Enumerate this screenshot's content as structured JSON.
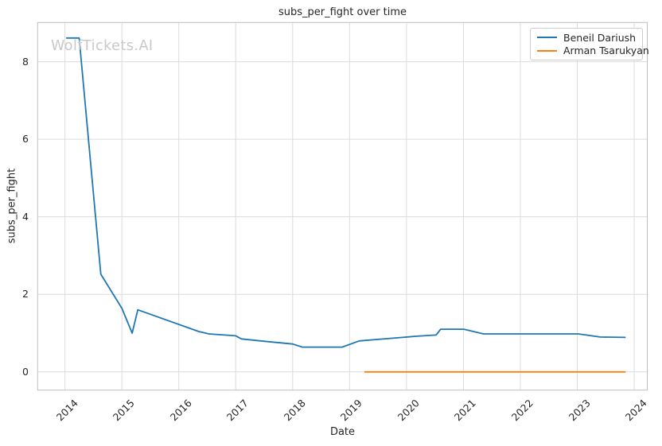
{
  "watermark": "WolfTickets.AI",
  "chart_data": {
    "type": "line",
    "title": "subs_per_fight over time",
    "xlabel": "Date",
    "ylabel": "subs_per_fight",
    "x_unit": "decimal_year",
    "x_ticks": [
      2014,
      2015,
      2016,
      2017,
      2018,
      2019,
      2020,
      2021,
      2022,
      2023,
      2024
    ],
    "y_ticks": [
      0,
      2,
      4,
      6,
      8
    ],
    "xlim": [
      2013.52,
      2024.23
    ],
    "ylim": [
      -0.47,
      9.01
    ],
    "grid": true,
    "grid_color": "#dcdcdc",
    "spine_color": "#c0c0c0",
    "legend_position": "upper right",
    "series": [
      {
        "name": "Beneil Dariush",
        "color": "#1f77b4",
        "points": [
          [
            2014.02,
            8.61
          ],
          [
            2014.25,
            8.61
          ],
          [
            2014.63,
            2.52
          ],
          [
            2015.0,
            1.64
          ],
          [
            2015.18,
            1.0
          ],
          [
            2015.28,
            1.6
          ],
          [
            2016.35,
            1.04
          ],
          [
            2016.53,
            0.98
          ],
          [
            2017.0,
            0.93
          ],
          [
            2017.1,
            0.85
          ],
          [
            2017.56,
            0.78
          ],
          [
            2018.0,
            0.72
          ],
          [
            2018.17,
            0.64
          ],
          [
            2018.87,
            0.64
          ],
          [
            2019.17,
            0.8
          ],
          [
            2020.18,
            0.92
          ],
          [
            2020.52,
            0.95
          ],
          [
            2020.6,
            1.1
          ],
          [
            2021.01,
            1.1
          ],
          [
            2021.35,
            0.98
          ],
          [
            2023.02,
            0.98
          ],
          [
            2023.4,
            0.9
          ],
          [
            2023.85,
            0.89
          ]
        ]
      },
      {
        "name": "Arman Tsarukyan",
        "color": "#ff7f0e",
        "points": [
          [
            2019.26,
            0.0
          ],
          [
            2023.85,
            0.0
          ]
        ]
      }
    ]
  }
}
